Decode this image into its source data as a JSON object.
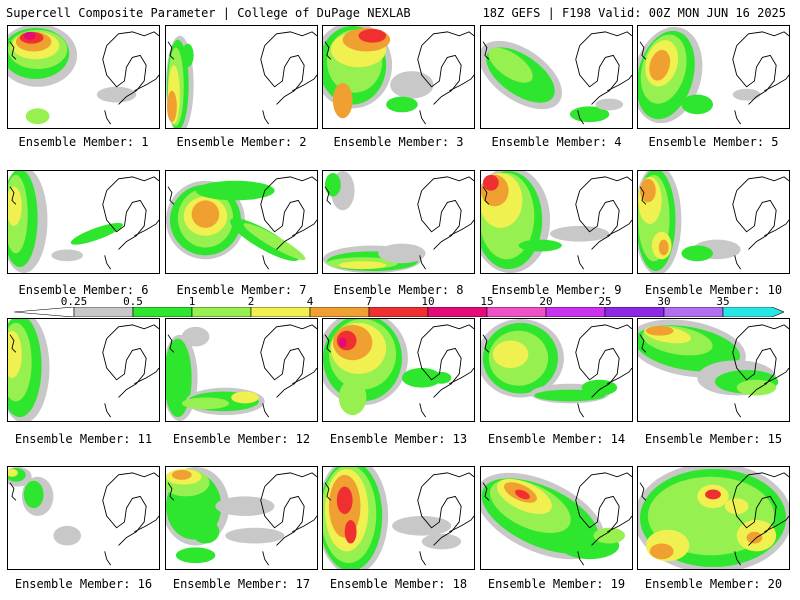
{
  "header": {
    "title": "Supercell Composite Parameter | College of DuPage NEXLAB",
    "run_info": "18Z GEFS | F198 Valid: 00Z MON JUN 16 2025"
  },
  "members": [
    {
      "label": "Ensemble Member: 1"
    },
    {
      "label": "Ensemble Member: 2"
    },
    {
      "label": "Ensemble Member: 3"
    },
    {
      "label": "Ensemble Member: 4"
    },
    {
      "label": "Ensemble Member: 5"
    },
    {
      "label": "Ensemble Member: 6"
    },
    {
      "label": "Ensemble Member: 7"
    },
    {
      "label": "Ensemble Member: 8"
    },
    {
      "label": "Ensemble Member: 9"
    },
    {
      "label": "Ensemble Member: 10"
    },
    {
      "label": "Ensemble Member: 11"
    },
    {
      "label": "Ensemble Member: 12"
    },
    {
      "label": "Ensemble Member: 13"
    },
    {
      "label": "Ensemble Member: 14"
    },
    {
      "label": "Ensemble Member: 15"
    },
    {
      "label": "Ensemble Member: 16"
    },
    {
      "label": "Ensemble Member: 17"
    },
    {
      "label": "Ensemble Member: 18"
    },
    {
      "label": "Ensemble Member: 19"
    },
    {
      "label": "Ensemble Member: 20"
    }
  ],
  "colorbar": {
    "ticks": [
      "0.25",
      "0.5",
      "1",
      "2",
      "4",
      "7",
      "10",
      "15",
      "20",
      "25",
      "30",
      "35"
    ],
    "colors": [
      "#c8c8c8",
      "#2ee62e",
      "#96f050",
      "#f0f050",
      "#f0a030",
      "#f03030",
      "#e60a78",
      "#f050c8",
      "#c832f0",
      "#8c28e6",
      "#b46ef0",
      "#28e6e6"
    ]
  }
}
